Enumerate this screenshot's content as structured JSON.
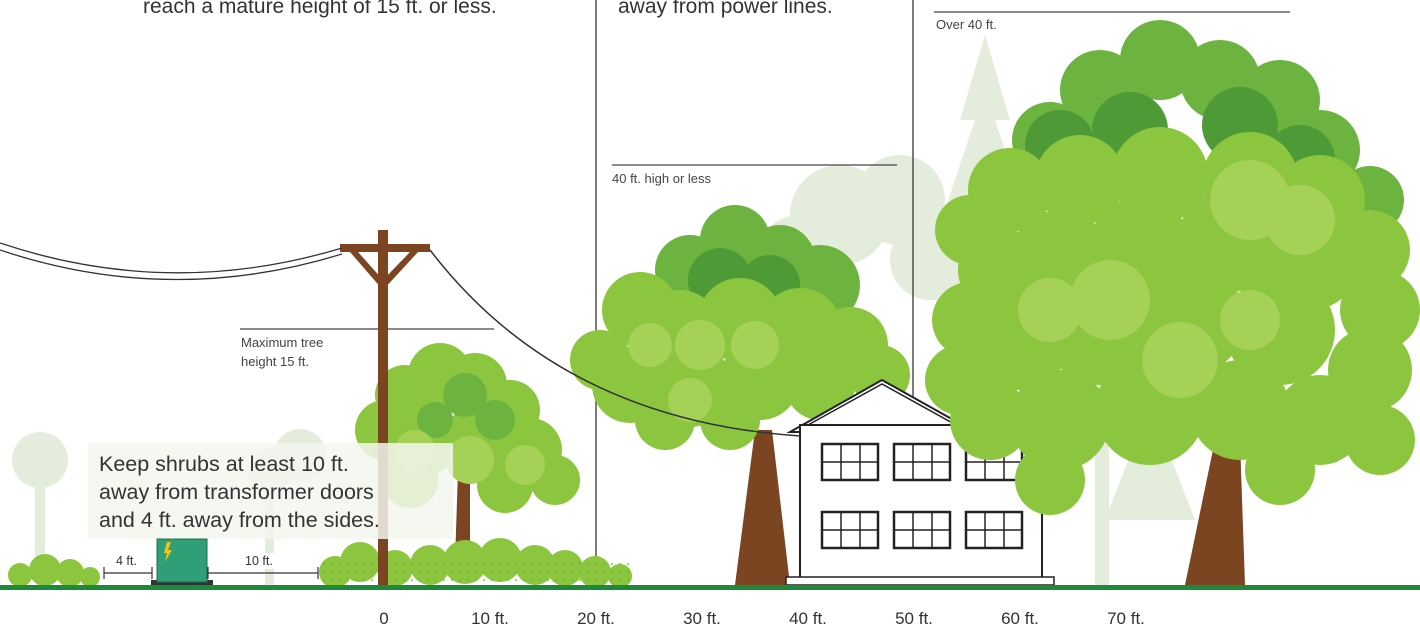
{
  "top_text": {
    "left": "reach a mature height of 15 ft. or less.",
    "middle": "away from power lines."
  },
  "zones": {
    "over_40": "Over 40 ft.",
    "under_40": "40 ft. high or less",
    "max_tree_line1": "Maximum tree",
    "max_tree_line2": "height 15 ft."
  },
  "shrub_note": {
    "line1": "Keep shrubs at least 10 ft.",
    "line2": "away from transformer doors",
    "line3": "and 4 ft. away from the sides."
  },
  "transformer": {
    "side_clearance": "4 ft.",
    "door_clearance": "10 ft."
  },
  "axis_ticks": [
    "0",
    "10 ft.",
    "20 ft.",
    "30 ft.",
    "40 ft.",
    "50 ft.",
    "60 ft.",
    "70 ft."
  ],
  "colors": {
    "grass": "#1d8a3b",
    "tree_light": "#8cc63f",
    "tree_mid": "#6db33f",
    "tree_dark": "#4e9a36",
    "trunk": "#7a4520",
    "transformer": "#2e9f77",
    "background_tree": "#e3ecd9"
  }
}
